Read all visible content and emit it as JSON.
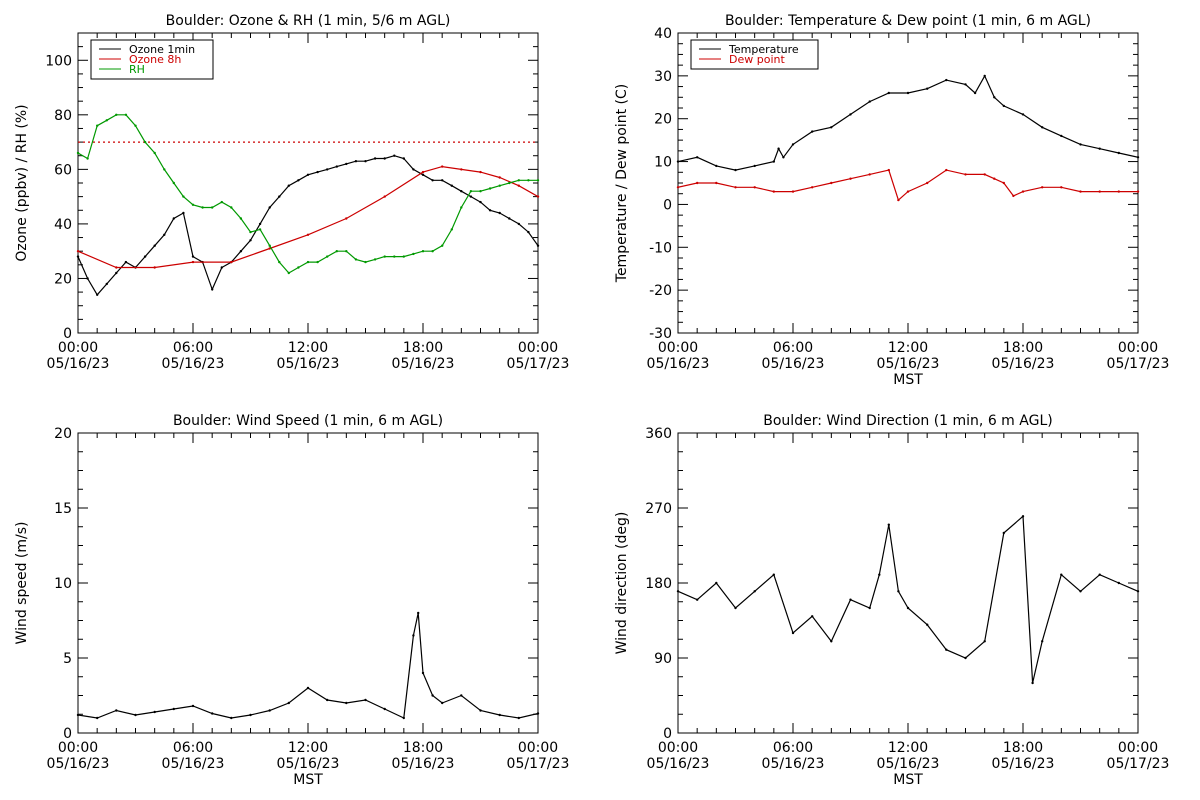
{
  "chart_data": [
    {
      "id": "ozone_rh",
      "type": "line",
      "title": "Boulder: Ozone & RH (1 min, 5/6 m AGL)",
      "xlabel": "",
      "ylabel": "Ozone (ppbv) / RH (%)",
      "xlim": [
        "05/16/23 00:00",
        "05/17/23 00:00"
      ],
      "ylim": [
        0,
        110
      ],
      "yticks": [
        0,
        20,
        40,
        60,
        80,
        100
      ],
      "xticks": [
        {
          "time": "00:00",
          "date": "05/16/23"
        },
        {
          "time": "06:00",
          "date": "05/16/23"
        },
        {
          "time": "12:00",
          "date": "05/16/23"
        },
        {
          "time": "18:00",
          "date": "05/16/23"
        },
        {
          "time": "00:00",
          "date": "05/17/23"
        }
      ],
      "legend": {
        "position": "top-left",
        "entries": [
          "Ozone 1min",
          "Ozone 8h",
          "RH"
        ]
      },
      "reference_line": {
        "value": 70,
        "color": "#cc0000",
        "style": "dotted"
      },
      "series": [
        {
          "name": "Ozone 1min",
          "color": "#000000",
          "x": [
            "00:00",
            "00:30",
            "01:00",
            "01:30",
            "02:00",
            "02:30",
            "03:00",
            "03:30",
            "04:00",
            "04:30",
            "05:00",
            "05:30",
            "06:00",
            "06:30",
            "07:00",
            "07:30",
            "08:00",
            "08:30",
            "09:00",
            "09:30",
            "10:00",
            "10:30",
            "11:00",
            "11:30",
            "12:00",
            "12:30",
            "13:00",
            "13:30",
            "14:00",
            "14:30",
            "15:00",
            "15:30",
            "16:00",
            "16:30",
            "17:00",
            "17:30",
            "18:00",
            "18:30",
            "19:00",
            "19:30",
            "20:00",
            "20:30",
            "21:00",
            "21:30",
            "22:00",
            "22:30",
            "23:00",
            "23:30",
            "24:00"
          ],
          "values": [
            28,
            20,
            14,
            18,
            22,
            26,
            24,
            28,
            32,
            36,
            42,
            44,
            28,
            26,
            16,
            24,
            26,
            30,
            34,
            40,
            46,
            50,
            54,
            56,
            58,
            59,
            60,
            61,
            62,
            63,
            63,
            64,
            64,
            65,
            64,
            60,
            58,
            56,
            56,
            54,
            52,
            50,
            48,
            45,
            44,
            42,
            40,
            37,
            32
          ]
        },
        {
          "name": "Ozone 8h",
          "color": "#cc0000",
          "x": [
            "00:00",
            "02:00",
            "04:00",
            "06:00",
            "08:00",
            "10:00",
            "12:00",
            "14:00",
            "16:00",
            "18:00",
            "19:00",
            "20:00",
            "21:00",
            "22:00",
            "23:00",
            "24:00"
          ],
          "values": [
            30,
            24,
            24,
            26,
            26,
            31,
            36,
            42,
            50,
            59,
            61,
            60,
            59,
            57,
            54,
            50
          ]
        },
        {
          "name": "RH",
          "color": "#009900",
          "x": [
            "00:00",
            "00:30",
            "01:00",
            "01:30",
            "02:00",
            "02:30",
            "03:00",
            "03:30",
            "04:00",
            "04:30",
            "05:00",
            "05:30",
            "06:00",
            "06:30",
            "07:00",
            "07:30",
            "08:00",
            "08:30",
            "09:00",
            "09:30",
            "10:00",
            "10:30",
            "11:00",
            "11:30",
            "12:00",
            "12:30",
            "13:00",
            "13:30",
            "14:00",
            "14:30",
            "15:00",
            "15:30",
            "16:00",
            "16:30",
            "17:00",
            "17:30",
            "18:00",
            "18:30",
            "19:00",
            "19:30",
            "20:00",
            "20:30",
            "21:00",
            "21:30",
            "22:00",
            "22:30",
            "23:00",
            "23:30",
            "24:00"
          ],
          "values": [
            66,
            64,
            76,
            78,
            80,
            80,
            76,
            70,
            66,
            60,
            55,
            50,
            47,
            46,
            46,
            48,
            46,
            42,
            37,
            38,
            32,
            26,
            22,
            24,
            26,
            26,
            28,
            30,
            30,
            27,
            26,
            27,
            28,
            28,
            28,
            29,
            30,
            30,
            32,
            38,
            46,
            52,
            52,
            53,
            54,
            55,
            56,
            56,
            56
          ]
        }
      ]
    },
    {
      "id": "temp_dew",
      "type": "line",
      "title": "Boulder: Temperature & Dew point (1 min, 6 m AGL)",
      "xlabel": "MST",
      "ylabel": "Temperature / Dew point (C)",
      "xlim": [
        "05/16/23 00:00",
        "05/17/23 00:00"
      ],
      "ylim": [
        -30,
        40
      ],
      "yticks": [
        -30,
        -20,
        -10,
        0,
        10,
        20,
        30,
        40
      ],
      "xticks": [
        {
          "time": "00:00",
          "date": "05/16/23"
        },
        {
          "time": "06:00",
          "date": "05/16/23"
        },
        {
          "time": "12:00",
          "date": "05/16/23"
        },
        {
          "time": "18:00",
          "date": "05/16/23"
        },
        {
          "time": "00:00",
          "date": "05/17/23"
        }
      ],
      "legend": {
        "position": "top-left",
        "entries": [
          "Temperature",
          "Dew point"
        ]
      },
      "series": [
        {
          "name": "Temperature",
          "color": "#000000",
          "x": [
            "00:00",
            "01:00",
            "02:00",
            "03:00",
            "04:00",
            "05:00",
            "05:15",
            "05:30",
            "06:00",
            "07:00",
            "08:00",
            "09:00",
            "10:00",
            "11:00",
            "12:00",
            "13:00",
            "14:00",
            "15:00",
            "15:30",
            "16:00",
            "16:30",
            "17:00",
            "18:00",
            "19:00",
            "20:00",
            "21:00",
            "22:00",
            "23:00",
            "24:00"
          ],
          "values": [
            10,
            11,
            9,
            8,
            9,
            10,
            13,
            11,
            14,
            17,
            18,
            21,
            24,
            26,
            26,
            27,
            29,
            28,
            26,
            30,
            25,
            23,
            21,
            18,
            16,
            14,
            13,
            12,
            11
          ]
        },
        {
          "name": "Dew point",
          "color": "#cc0000",
          "x": [
            "00:00",
            "01:00",
            "02:00",
            "03:00",
            "04:00",
            "05:00",
            "06:00",
            "07:00",
            "08:00",
            "09:00",
            "10:00",
            "11:00",
            "11:30",
            "12:00",
            "13:00",
            "14:00",
            "15:00",
            "16:00",
            "16:30",
            "17:00",
            "17:30",
            "18:00",
            "19:00",
            "20:00",
            "21:00",
            "22:00",
            "23:00",
            "24:00"
          ],
          "values": [
            4,
            5,
            5,
            4,
            4,
            3,
            3,
            4,
            5,
            6,
            7,
            8,
            1,
            3,
            5,
            8,
            7,
            7,
            6,
            5,
            2,
            3,
            4,
            4,
            3,
            3,
            3,
            3
          ]
        }
      ]
    },
    {
      "id": "wind_speed",
      "type": "line",
      "title": "Boulder: Wind Speed (1 min, 6 m AGL)",
      "xlabel": "MST",
      "ylabel": "Wind speed (m/s)",
      "xlim": [
        "05/16/23 00:00",
        "05/17/23 00:00"
      ],
      "ylim": [
        0,
        20
      ],
      "yticks": [
        0,
        5,
        10,
        15,
        20
      ],
      "xticks": [
        {
          "time": "00:00",
          "date": "05/16/23"
        },
        {
          "time": "06:00",
          "date": "05/16/23"
        },
        {
          "time": "12:00",
          "date": "05/16/23"
        },
        {
          "time": "18:00",
          "date": "05/16/23"
        },
        {
          "time": "00:00",
          "date": "05/17/23"
        }
      ],
      "series": [
        {
          "name": "",
          "color": "#000000",
          "x": [
            "00:00",
            "01:00",
            "02:00",
            "03:00",
            "04:00",
            "05:00",
            "06:00",
            "07:00",
            "08:00",
            "09:00",
            "10:00",
            "11:00",
            "12:00",
            "13:00",
            "14:00",
            "15:00",
            "16:00",
            "17:00",
            "17:30",
            "17:45",
            "18:00",
            "18:30",
            "19:00",
            "20:00",
            "21:00",
            "22:00",
            "23:00",
            "24:00"
          ],
          "values": [
            1.2,
            1.0,
            1.5,
            1.2,
            1.4,
            1.6,
            1.8,
            1.3,
            1.0,
            1.2,
            1.5,
            2.0,
            3.0,
            2.2,
            2.0,
            2.2,
            1.6,
            1.0,
            6.5,
            8.0,
            4.0,
            2.5,
            2.0,
            2.5,
            1.5,
            1.2,
            1.0,
            1.3
          ]
        }
      ]
    },
    {
      "id": "wind_dir",
      "type": "line",
      "title": "Boulder: Wind Direction (1 min, 6 m AGL)",
      "xlabel": "MST",
      "ylabel": "Wind direction (deg)",
      "xlim": [
        "05/16/23 00:00",
        "05/17/23 00:00"
      ],
      "ylim": [
        0,
        360
      ],
      "yticks": [
        0,
        90,
        180,
        270,
        360
      ],
      "xticks": [
        {
          "time": "00:00",
          "date": "05/16/23"
        },
        {
          "time": "06:00",
          "date": "05/16/23"
        },
        {
          "time": "12:00",
          "date": "05/16/23"
        },
        {
          "time": "18:00",
          "date": "05/16/23"
        },
        {
          "time": "00:00",
          "date": "05/17/23"
        }
      ],
      "series": [
        {
          "name": "",
          "color": "#000000",
          "x": [
            "00:00",
            "01:00",
            "02:00",
            "03:00",
            "04:00",
            "05:00",
            "06:00",
            "07:00",
            "08:00",
            "09:00",
            "10:00",
            "10:30",
            "11:00",
            "11:30",
            "12:00",
            "13:00",
            "14:00",
            "15:00",
            "16:00",
            "17:00",
            "18:00",
            "18:30",
            "19:00",
            "20:00",
            "21:00",
            "22:00",
            "23:00",
            "24:00"
          ],
          "values": [
            170,
            160,
            180,
            150,
            170,
            190,
            120,
            140,
            110,
            160,
            150,
            190,
            250,
            170,
            150,
            130,
            100,
            90,
            110,
            240,
            260,
            60,
            110,
            190,
            170,
            190,
            180,
            170
          ]
        }
      ]
    }
  ]
}
